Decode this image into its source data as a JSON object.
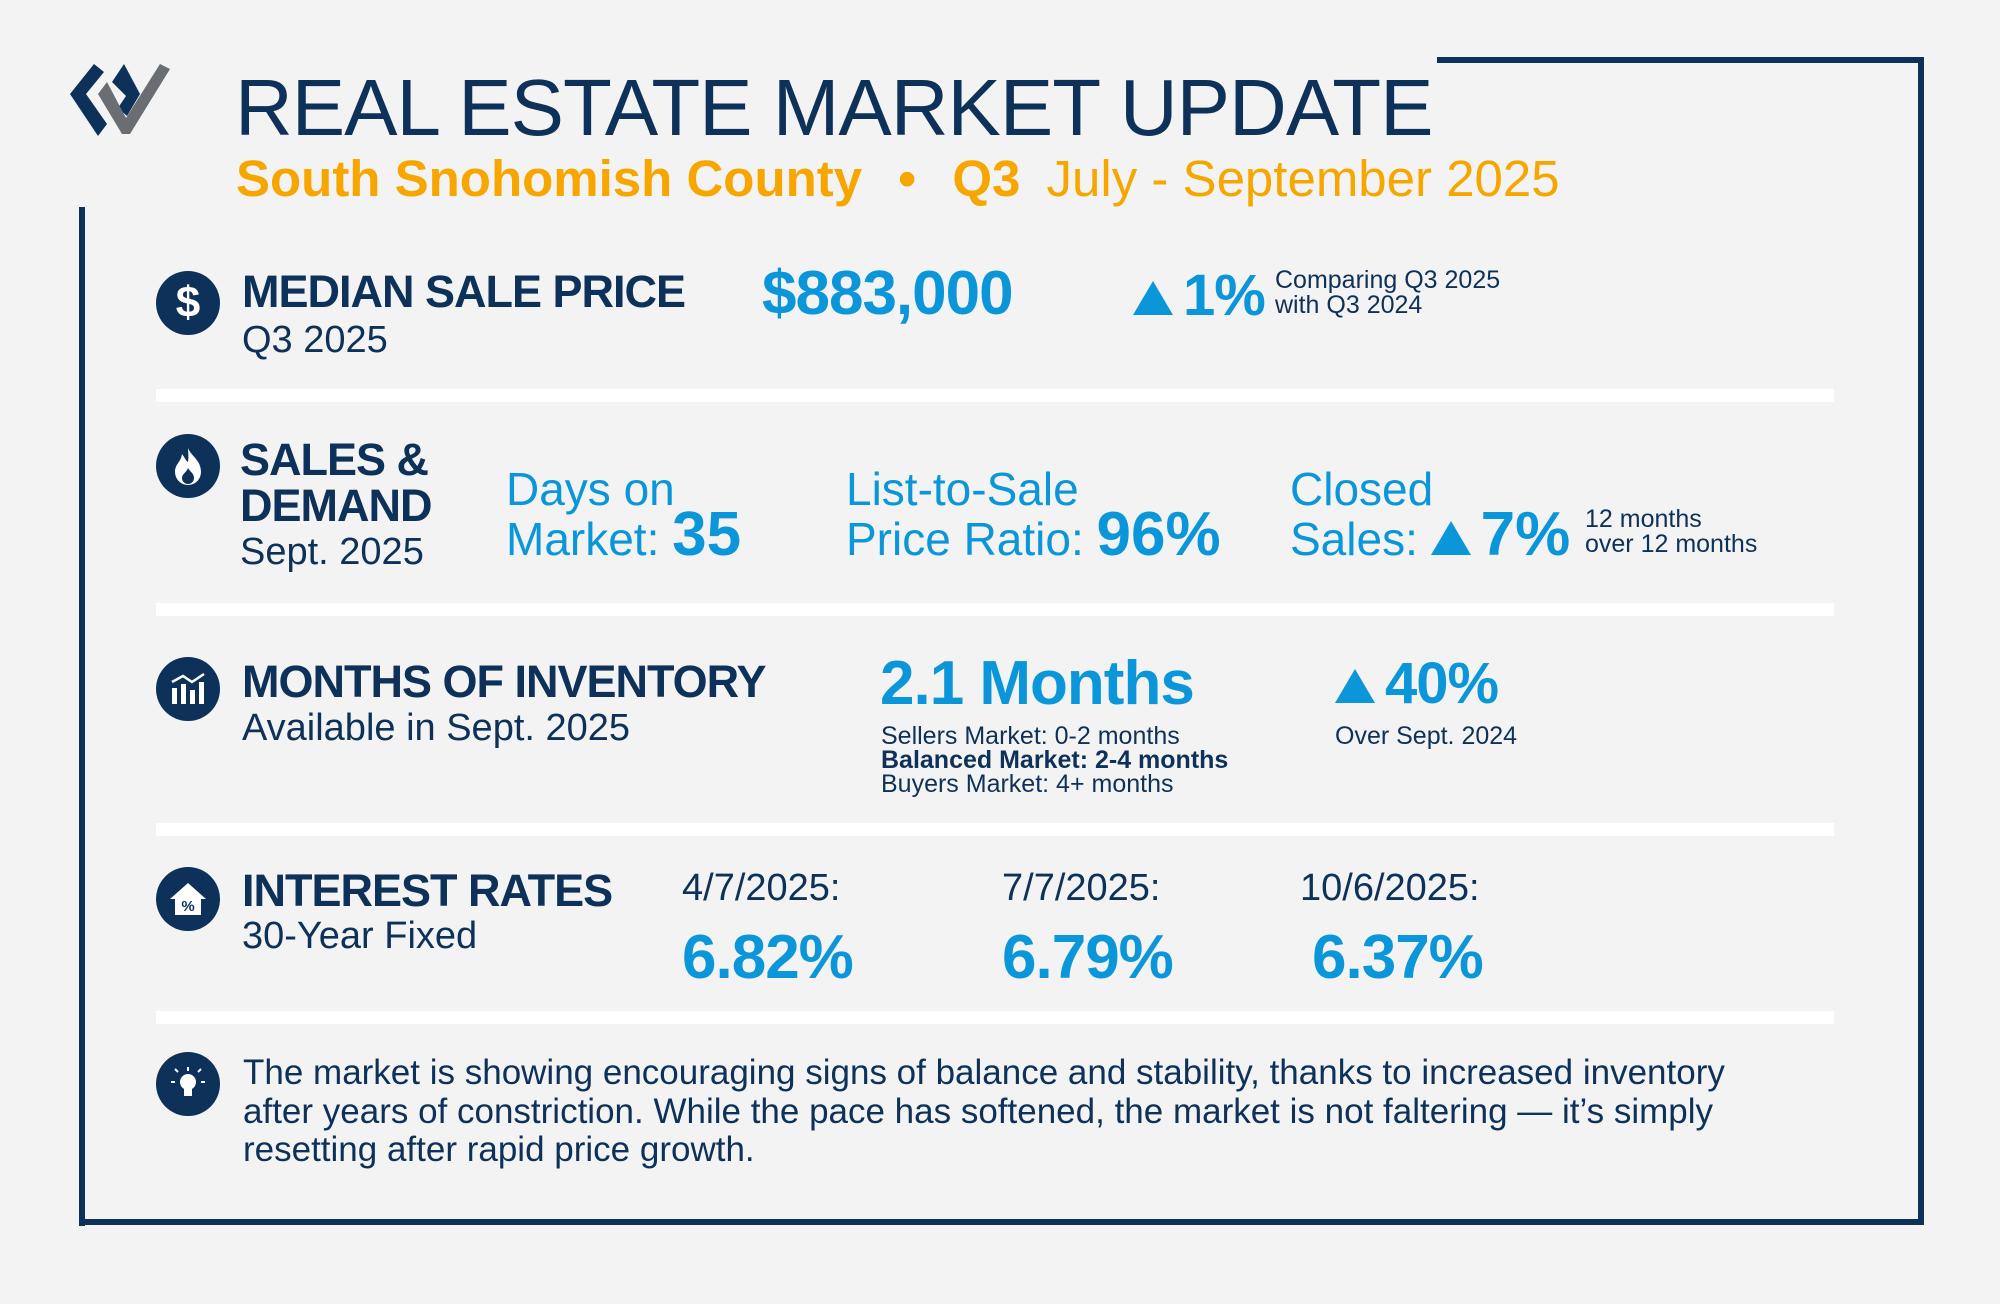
{
  "header": {
    "title": "REAL ESTATE MARKET UPDATE",
    "region": "South Snohomish County",
    "bullet": "•",
    "quarter": "Q3",
    "period": "July - September 2025"
  },
  "median": {
    "title": "MEDIAN SALE PRICE",
    "sub": "Q3 2025",
    "value": "$883,000",
    "change": "1%",
    "note1": "Comparing Q3 2025",
    "note2": "with Q3 2024"
  },
  "sales": {
    "title1": "SALES &",
    "title2": "DEMAND",
    "sub": "Sept. 2025",
    "dom1": "Days on",
    "dom2": "Market:",
    "dom_value": "35",
    "ratio1": "List-to-Sale",
    "ratio2": "Price Ratio:",
    "ratio_value": "96%",
    "closed1": "Closed",
    "closed2": "Sales:",
    "closed_value": "7%",
    "closed_note1": "12 months",
    "closed_note2": "over 12 months"
  },
  "inventory": {
    "title": "MONTHS OF INVENTORY",
    "sub": "Available in Sept. 2025",
    "value": "2.1 Months",
    "legend1": "Sellers Market: 0-2 months",
    "legend2": "Balanced Market: 2-4 months",
    "legend3": "Buyers Market: 4+ months",
    "change": "40%",
    "change_note": "Over Sept. 2024"
  },
  "rates": {
    "title": "INTEREST RATES",
    "sub": "30-Year Fixed",
    "items": [
      {
        "date": "4/7/2025:",
        "rate": "6.82%"
      },
      {
        "date": "7/7/2025:",
        "rate": "6.79%"
      },
      {
        "date": "10/6/2025:",
        "rate": "6.37%"
      }
    ]
  },
  "summary": {
    "line1": "The market is showing encouraging signs of balance and stability, thanks to increased inventory",
    "line2": "after years of constriction. While the pace has softened, the market is not faltering — it’s simply",
    "line3": "resetting after rapid price growth."
  },
  "colors": {
    "navy": "#0d3158",
    "blue": "#0a96d8",
    "orange": "#f7a600"
  }
}
